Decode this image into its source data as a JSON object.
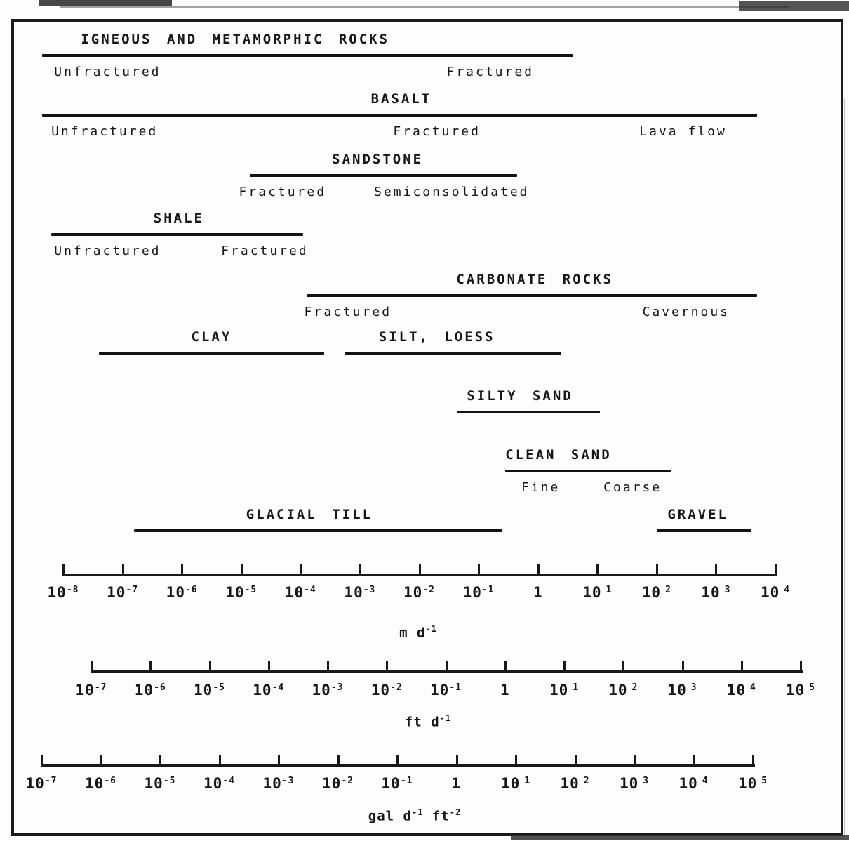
{
  "figure": {
    "description_label": "",
    "ink_color": "#161616",
    "background_color": "#fdfdfd"
  },
  "chart_data": {
    "type": "bar",
    "orientation": "horizontal-range",
    "x_scale": "log10, hydraulic conductivity in m/d (with ft/d and gal/d/ft2 companion scales)",
    "title": "",
    "tick_base": "10",
    "unity_label": "1",
    "materials": [
      {
        "name": "IGNEOUS AND METAMORPHIC ROCKS",
        "row": 1,
        "bar_log_md": [
          -8.35,
          0.6
        ],
        "title_center": -5.1,
        "sublabels": [
          {
            "text": "Unfractured",
            "center": -7.25
          },
          {
            "text": "Fractured",
            "center": -0.8
          }
        ]
      },
      {
        "name": "BASALT",
        "row": 2,
        "bar_log_md": [
          -8.35,
          3.7
        ],
        "title_center": -2.3,
        "sublabels": [
          {
            "text": "Unfractured",
            "center": -7.3
          },
          {
            "text": "Fractured",
            "center": -1.7
          },
          {
            "text": "Lava flow",
            "center": 2.45
          }
        ]
      },
      {
        "name": "SANDSTONE",
        "row": 3,
        "bar_log_md": [
          -4.85,
          -0.35
        ],
        "title_center": -2.7,
        "sublabels": [
          {
            "text": "Fractured",
            "center": -4.3
          },
          {
            "text": "Semiconsolidated",
            "center": -1.45
          }
        ]
      },
      {
        "name": "SHALE",
        "row": 4,
        "bar_log_md": [
          -8.2,
          -3.95
        ],
        "title_center": -6.05,
        "sublabels": [
          {
            "text": "Unfractured",
            "center": -7.25
          },
          {
            "text": "Fractured",
            "center": -4.6
          }
        ]
      },
      {
        "name": "CARBONATE ROCKS",
        "row": 5,
        "bar_log_md": [
          -3.9,
          3.7
        ],
        "title_center": -0.05,
        "sublabels": [
          {
            "text": "Fractured",
            "center": -3.2
          },
          {
            "text": "Cavernous",
            "center": 2.5
          }
        ]
      },
      {
        "name": "CLAY",
        "row": 6,
        "bar_log_md": [
          -7.4,
          -3.6
        ],
        "title_center": -5.5,
        "sublabels": []
      },
      {
        "name": "SILT, LOESS",
        "row": 6,
        "bar_log_md": [
          -3.25,
          0.4
        ],
        "title_center": -1.7,
        "sublabels": []
      },
      {
        "name": "SILTY SAND",
        "row": 7,
        "bar_log_md": [
          -1.35,
          1.05
        ],
        "title_center": -0.3,
        "sublabels": []
      },
      {
        "name": "CLEAN SAND",
        "row": 8,
        "bar_log_md": [
          -0.55,
          2.25
        ],
        "title_center": 0.35,
        "sublabels": [
          {
            "text": "Fine",
            "center": 0.05
          },
          {
            "text": "Coarse",
            "center": 1.6
          }
        ]
      },
      {
        "name": "GLACIAL TILL",
        "row": 9,
        "bar_log_md": [
          -6.8,
          -0.6
        ],
        "title_center": -3.85,
        "sublabels": []
      },
      {
        "name": "GRAVEL",
        "row": 9,
        "bar_log_md": [
          2.0,
          3.6
        ],
        "title_center": 2.7,
        "sublabels": []
      }
    ],
    "scales": [
      {
        "unit_plain": "m d-1",
        "unit_segments": [
          {
            "text": "m d"
          },
          {
            "sup": "-1"
          }
        ],
        "tick_exponents": [
          -8,
          -7,
          -6,
          -5,
          -4,
          -3,
          -2,
          -1,
          0,
          1,
          2,
          3,
          4
        ]
      },
      {
        "unit_plain": "ft d-1",
        "unit_segments": [
          {
            "text": "ft d"
          },
          {
            "sup": "-1"
          }
        ],
        "tick_exponents": [
          -7,
          -6,
          -5,
          -4,
          -3,
          -2,
          -1,
          0,
          1,
          2,
          3,
          4,
          5
        ]
      },
      {
        "unit_plain": "gal d-1 ft-2",
        "unit_segments": [
          {
            "text": "gal d"
          },
          {
            "sup": "-1"
          },
          {
            "text": " ft"
          },
          {
            "sup": "-2"
          }
        ],
        "tick_exponents": [
          -7,
          -6,
          -5,
          -4,
          -3,
          -2,
          -1,
          0,
          1,
          2,
          3,
          4,
          5
        ]
      }
    ]
  }
}
